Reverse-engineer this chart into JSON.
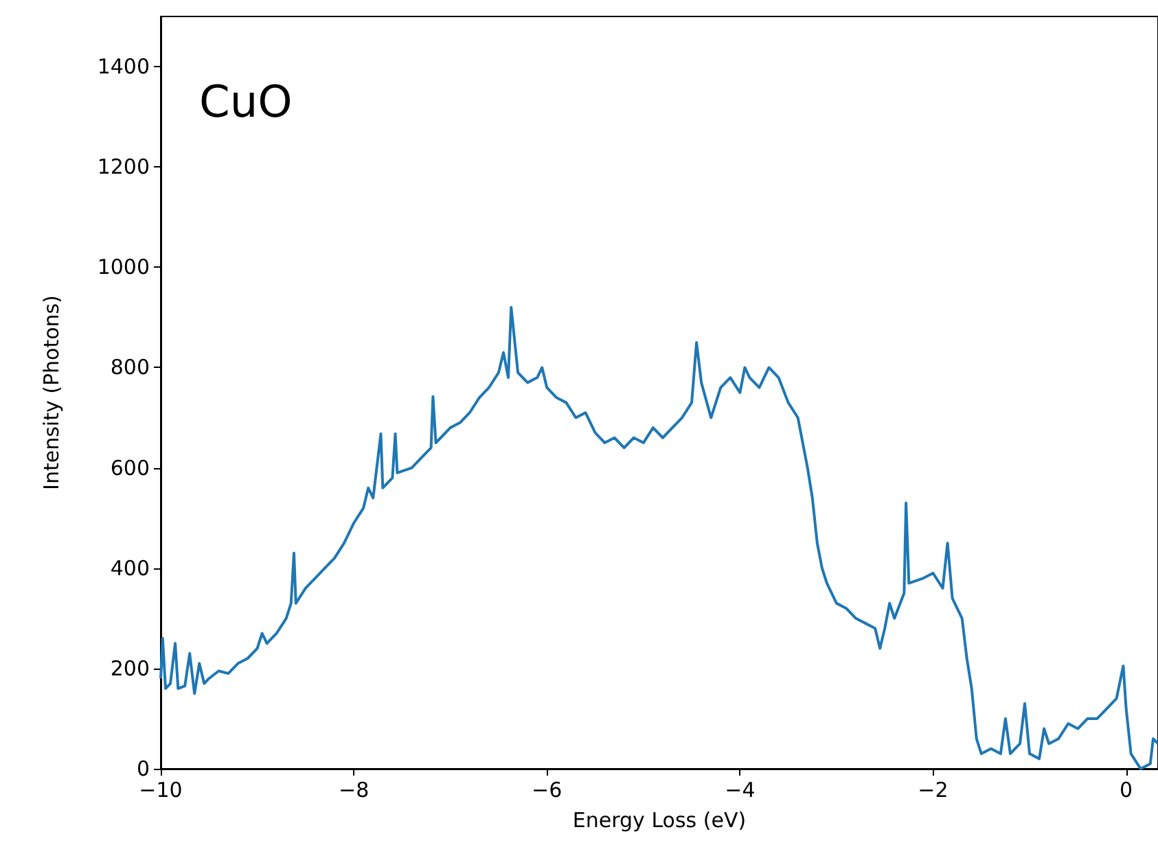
{
  "chart_data": {
    "type": "line",
    "xlabel": "Energy Loss (eV)",
    "ylabel": "Intensity (Photons)",
    "annotations": [
      "CuO"
    ],
    "xlim": [
      -10,
      0.33
    ],
    "ylim": [
      0,
      1500
    ],
    "xticks": [
      {
        "value": -10,
        "label": "−10"
      },
      {
        "value": -8,
        "label": "−8"
      },
      {
        "value": -6,
        "label": "−6"
      },
      {
        "value": -4,
        "label": "−4"
      },
      {
        "value": -2,
        "label": "−2"
      },
      0
    ],
    "yticks": [
      0,
      200,
      400,
      600,
      800,
      1000,
      1200,
      1400
    ],
    "grid": false,
    "marker": "none",
    "line_style": "solid",
    "series": [
      {
        "color": "#1f77b4",
        "x": [
          -10.0,
          -9.98,
          -9.95,
          -9.9,
          -9.85,
          -9.82,
          -9.75,
          -9.7,
          -9.65,
          -9.6,
          -9.55,
          -9.5,
          -9.4,
          -9.3,
          -9.2,
          -9.1,
          -9.0,
          -8.95,
          -8.9,
          -8.8,
          -8.7,
          -8.65,
          -8.62,
          -8.6,
          -8.5,
          -8.4,
          -8.3,
          -8.2,
          -8.1,
          -8.0,
          -7.9,
          -7.85,
          -7.8,
          -7.72,
          -7.7,
          -7.6,
          -7.57,
          -7.55,
          -7.4,
          -7.3,
          -7.2,
          -7.18,
          -7.15,
          -7.1,
          -7.0,
          -6.9,
          -6.8,
          -6.7,
          -6.6,
          -6.5,
          -6.45,
          -6.4,
          -6.37,
          -6.3,
          -6.2,
          -6.1,
          -6.05,
          -6.0,
          -5.9,
          -5.8,
          -5.7,
          -5.6,
          -5.5,
          -5.4,
          -5.3,
          -5.2,
          -5.1,
          -5.0,
          -4.9,
          -4.8,
          -4.7,
          -4.6,
          -4.5,
          -4.45,
          -4.4,
          -4.3,
          -4.2,
          -4.1,
          -4.0,
          -3.95,
          -3.9,
          -3.8,
          -3.7,
          -3.6,
          -3.5,
          -3.4,
          -3.3,
          -3.25,
          -3.2,
          -3.15,
          -3.1,
          -3.0,
          -2.9,
          -2.8,
          -2.7,
          -2.6,
          -2.55,
          -2.5,
          -2.45,
          -2.4,
          -2.3,
          -2.28,
          -2.25,
          -2.1,
          -2.0,
          -1.9,
          -1.85,
          -1.8,
          -1.7,
          -1.65,
          -1.6,
          -1.55,
          -1.5,
          -1.4,
          -1.3,
          -1.25,
          -1.2,
          -1.1,
          -1.05,
          -1.0,
          -0.9,
          -0.85,
          -0.8,
          -0.7,
          -0.6,
          -0.5,
          -0.4,
          -0.3,
          -0.2,
          -0.1,
          -0.03,
          0.0,
          0.05,
          0.15,
          0.25,
          0.28,
          0.33
        ],
        "values": [
          180,
          260,
          160,
          170,
          250,
          160,
          165,
          230,
          150,
          210,
          170,
          180,
          195,
          190,
          210,
          220,
          240,
          270,
          250,
          270,
          300,
          330,
          430,
          330,
          360,
          380,
          400,
          420,
          450,
          490,
          520,
          560,
          540,
          668,
          560,
          580,
          668,
          590,
          600,
          620,
          640,
          742,
          650,
          660,
          680,
          690,
          710,
          740,
          760,
          790,
          830,
          780,
          920,
          790,
          770,
          780,
          800,
          760,
          740,
          730,
          700,
          710,
          670,
          650,
          660,
          640,
          660,
          650,
          680,
          660,
          680,
          700,
          730,
          850,
          770,
          700,
          760,
          780,
          750,
          800,
          780,
          760,
          800,
          780,
          730,
          700,
          600,
          540,
          450,
          400,
          370,
          330,
          320,
          300,
          290,
          280,
          240,
          280,
          330,
          300,
          350,
          530,
          370,
          380,
          390,
          360,
          450,
          340,
          300,
          220,
          160,
          60,
          30,
          40,
          30,
          100,
          30,
          50,
          130,
          30,
          20,
          80,
          50,
          60,
          90,
          80,
          100,
          100,
          120,
          140,
          205,
          120,
          30,
          0,
          10,
          60,
          50
        ]
      }
    ]
  }
}
